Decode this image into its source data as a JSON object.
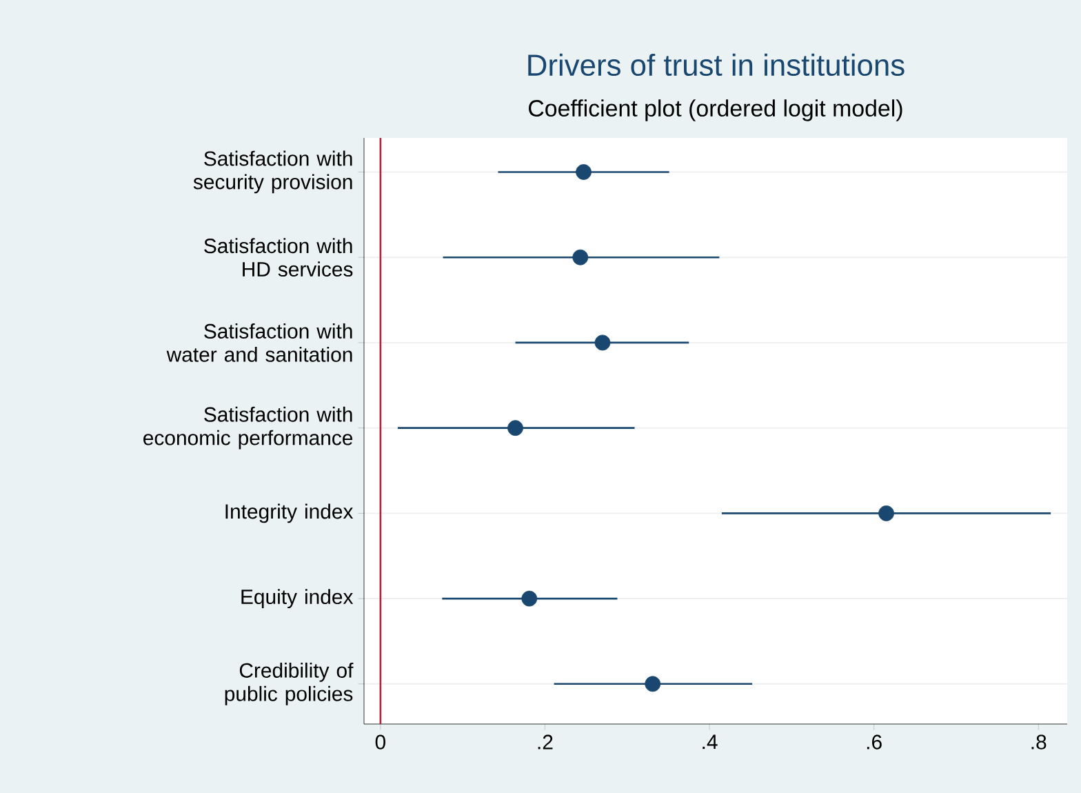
{
  "chart_data": {
    "type": "scatter",
    "orientation": "horizontal",
    "title": "Drivers of trust in institutions",
    "subtitle": "Coefficient plot (ordered logit model)",
    "categories": [
      "Satisfaction with security provision",
      "Satisfaction with HD services",
      "Satisfaction with water and sanitation",
      "Satisfaction with economic performance",
      "Integrity index",
      "Equity index",
      "Credibility of public policies"
    ],
    "values": [
      0.247,
      0.243,
      0.27,
      0.164,
      0.615,
      0.181,
      0.331
    ],
    "errors": [
      [
        0.143,
        0.351
      ],
      [
        0.076,
        0.412
      ],
      [
        0.164,
        0.375
      ],
      [
        0.021,
        0.309
      ],
      [
        0.415,
        0.815
      ],
      [
        0.075,
        0.288
      ],
      [
        0.211,
        0.452
      ]
    ],
    "color": "#1a476f",
    "marker": "circle",
    "grid": "y",
    "xlim": [
      -0.02,
      0.835
    ],
    "xticks": [
      0,
      {
        "value": 0.2,
        "label": ".2"
      },
      {
        "value": 0.4,
        "label": ".4"
      },
      {
        "value": 0.6,
        "label": ".6"
      },
      {
        "value": 0.8,
        "label": ".8"
      }
    ],
    "ref_lines": [
      {
        "axis": "x",
        "value": 0,
        "color": "#b5223b"
      }
    ]
  }
}
